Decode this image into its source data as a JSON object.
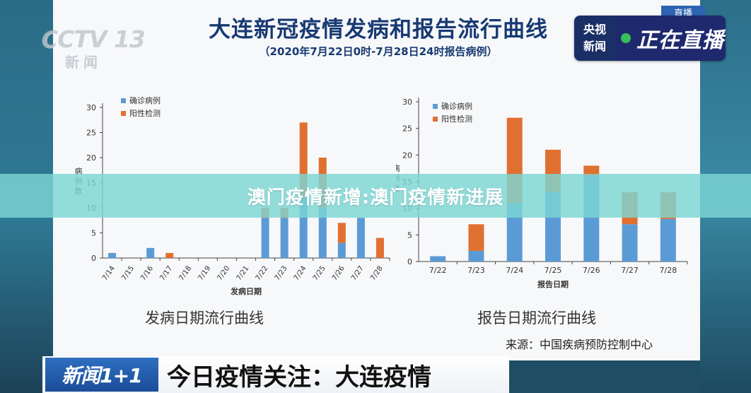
{
  "header": {
    "title": "大连新冠疫情发病和报告流行曲线",
    "subtitle": "（2020年7月22日0时-7月28日24时报告病例）"
  },
  "watermark": {
    "cctv": "CCTV 13",
    "xinwen": "新闻"
  },
  "corner_tag": "直播",
  "live_badge": {
    "left_line1": "央视",
    "left_line2": "新闻",
    "live_text": "正在直播"
  },
  "banner": {
    "text": "澳门疫情新增:澳门疫情新进展"
  },
  "source": "来源：中国疾病预防控制中心",
  "lower_third": {
    "program": "新闻1+1",
    "headline": "今日疫情关注：大连疫情"
  },
  "colors": {
    "confirmed": "#5b9bd5",
    "positive": "#e07030",
    "title": "#173a72"
  },
  "chart_data": [
    {
      "type": "bar",
      "stacked": true,
      "caption": "发病日期流行曲线",
      "xlabel": "发病日期",
      "ylabel": "病例数",
      "ylim": [
        0,
        30
      ],
      "yticks": [
        0,
        5,
        10,
        15,
        20,
        25,
        30
      ],
      "legend": "top-left",
      "categories": [
        "7/14",
        "7/15",
        "7/16",
        "7/17",
        "7/18",
        "7/19",
        "7/20",
        "7/21",
        "7/22",
        "7/23",
        "7/24",
        "7/25",
        "7/26",
        "7/27",
        "7/28"
      ],
      "series": [
        {
          "name": "确诊病例",
          "color": "#5b9bd5",
          "values": [
            1,
            0,
            2,
            0,
            0,
            0,
            0,
            0,
            8,
            8,
            12,
            10,
            3,
            8,
            0
          ]
        },
        {
          "name": "阳性检测",
          "color": "#e07030",
          "values": [
            0,
            0,
            0,
            1,
            0,
            0,
            0,
            0,
            2,
            2,
            15,
            10,
            4,
            0,
            4
          ]
        }
      ]
    },
    {
      "type": "bar",
      "stacked": true,
      "caption": "报告日期流行曲线",
      "xlabel": "报告日期",
      "ylabel": "病例数",
      "ylim": [
        0,
        30
      ],
      "yticks": [
        0,
        5,
        10,
        15,
        20,
        25,
        30
      ],
      "legend": "top-left",
      "categories": [
        "7/22",
        "7/23",
        "7/24",
        "7/25",
        "7/26",
        "7/27",
        "7/28"
      ],
      "series": [
        {
          "name": "确诊病例",
          "color": "#5b9bd5",
          "values": [
            1,
            2,
            11,
            13,
            16,
            7,
            8
          ]
        },
        {
          "name": "阳性检测",
          "color": "#e07030",
          "values": [
            0,
            5,
            16,
            8,
            2,
            6,
            5
          ]
        }
      ]
    }
  ]
}
